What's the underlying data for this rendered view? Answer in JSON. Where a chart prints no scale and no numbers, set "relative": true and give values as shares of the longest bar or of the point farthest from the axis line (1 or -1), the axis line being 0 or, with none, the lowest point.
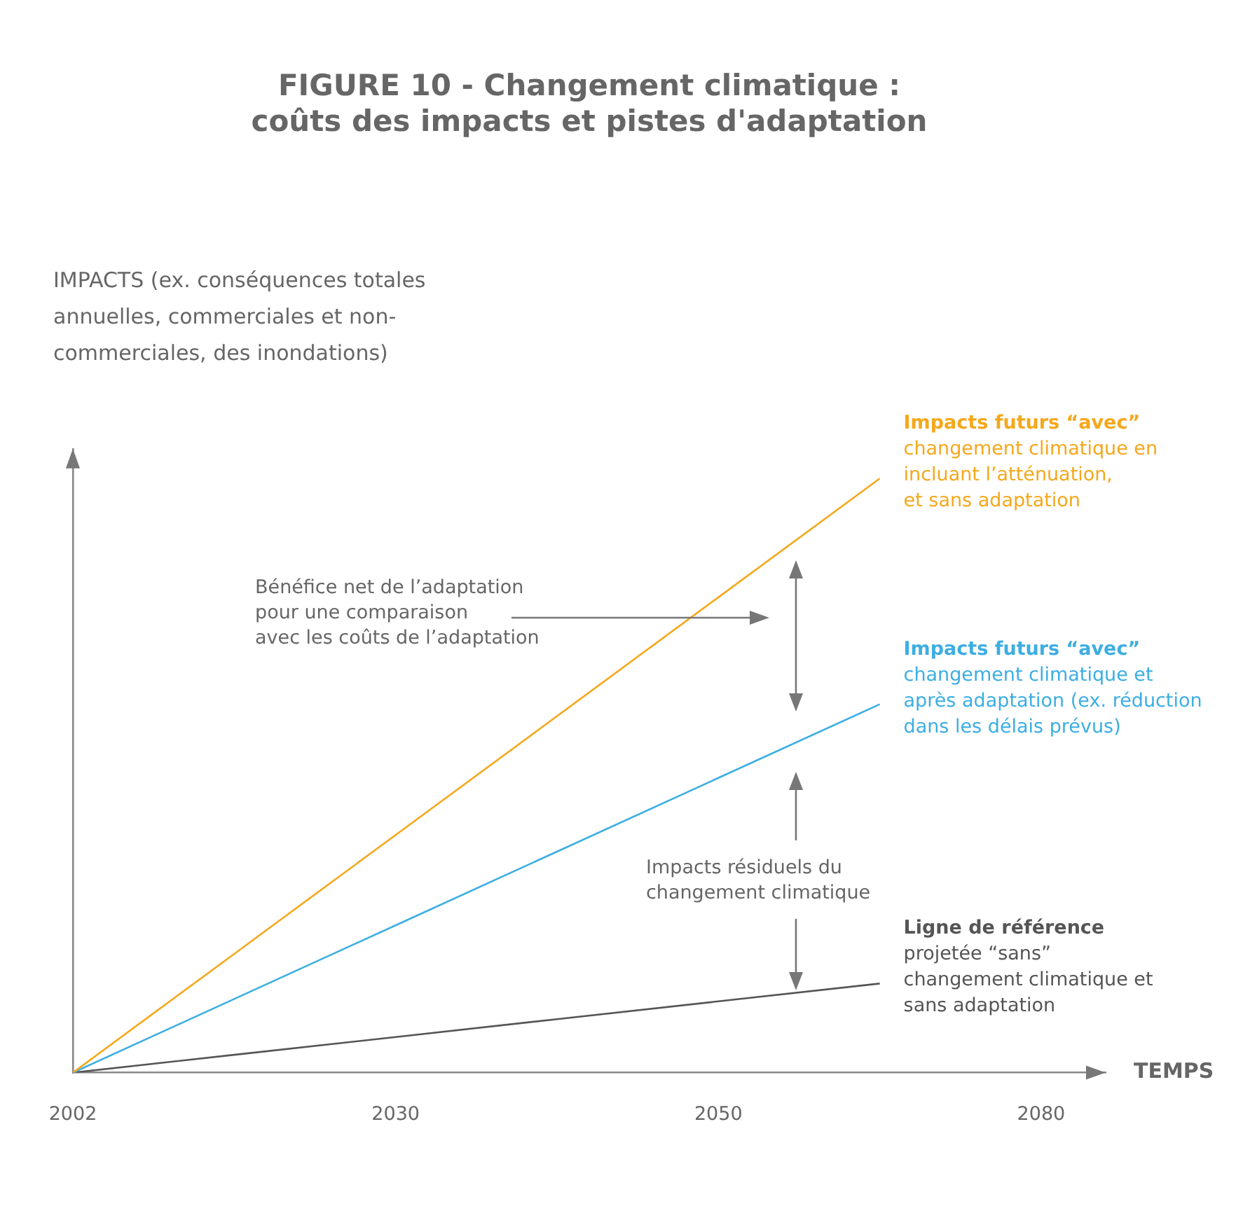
{
  "chart_data": {
    "type": "line",
    "title": "FIGURE 10 - Changement climatique :\ncoûts des impacts et pistes d'adaptation",
    "xlabel": "TEMPS",
    "relative": true,
    "categories": [
      "2002",
      null,
      "2030",
      null,
      "2050",
      null,
      "2080"
    ],
    "series": [
      {
        "name": "Impacts futurs “avec”\nchangement climatique en\nincluant l’atténuation,\net sans adaptation",
        "color": "#f5a81c",
        "values": [
          0,
          0.2,
          0.4,
          0.6,
          0.8,
          1,
          null
        ]
      },
      {
        "name": "Impacts futurs “avec”\nchangement climatique et\naprès adaptation (ex. réduction\ndans les délais prévus)",
        "color": "#3daee2",
        "values": [
          0,
          0.124,
          0.248,
          0.372,
          0.496,
          0.62,
          null
        ]
      },
      {
        "name": "Ligne de référence\nprojetée “sans”\nchangement climatique et\nsans adaptation",
        "color": "#555555",
        "values": [
          0,
          0.03,
          0.06,
          0.09,
          0.12,
          0.15,
          null
        ]
      }
    ],
    "annotations": [
      "IMPACTS (ex. conséquences totales\nannuelles, commerciales et non-\ncommerciales, des inondations)",
      "Bénéfice net de l’adaptation\npour une comparaison\navec les coûts de l’adaptation",
      "Impacts résiduels du\nchangement climatique"
    ],
    "grid": false,
    "legend": false,
    "marker": "none",
    "line_style": "solid"
  }
}
